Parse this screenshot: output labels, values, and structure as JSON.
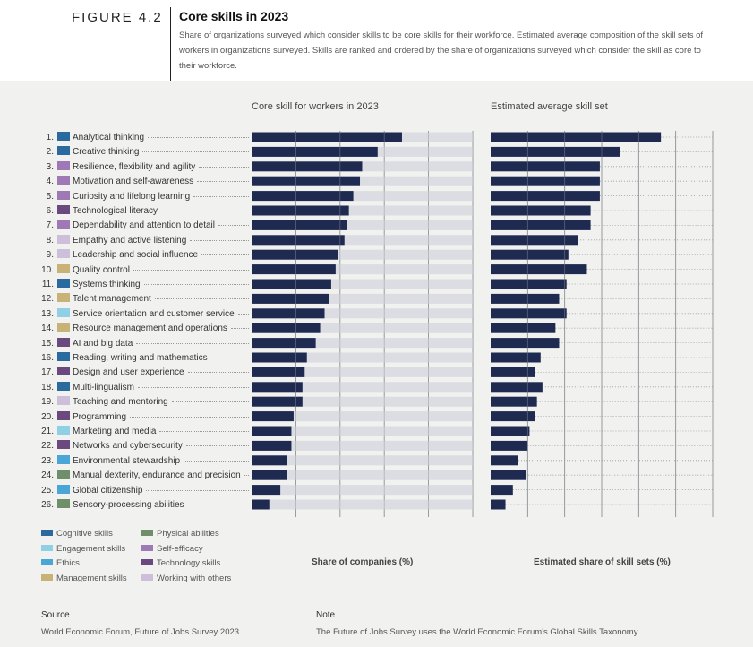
{
  "figure_label": "FIGURE 4.2",
  "title": "Core skills in 2023",
  "subtitle": "Share of organizations surveyed which consider skills to be core skills for their workforce. Estimated average composition of the skill sets of workers in organizations surveyed. Skills are ranked and ordered by the share of organizations surveyed which consider the skill as core to their workforce.",
  "colors": {
    "bar": "#1f2a50",
    "track": "#dcdde3",
    "Cognitive skills": "#2b6a9e",
    "Engagement skills": "#8fd0e6",
    "Ethics": "#4aa6d6",
    "Management skills": "#c8b277",
    "Physical abilities": "#6f8f6a",
    "Self-efficacy": "#9e79b5",
    "Technology skills": "#6a4a7e",
    "Working with others": "#cdbfd9"
  },
  "legend": [
    {
      "label": "Cognitive skills",
      "color": "#2b6a9e"
    },
    {
      "label": "Engagement skills",
      "color": "#8fd0e6"
    },
    {
      "label": "Ethics",
      "color": "#4aa6d6"
    },
    {
      "label": "Management skills",
      "color": "#c8b277"
    },
    {
      "label": "Physical abilities",
      "color": "#6f8f6a"
    },
    {
      "label": "Self-efficacy",
      "color": "#9e79b5"
    },
    {
      "label": "Technology skills",
      "color": "#6a4a7e"
    },
    {
      "label": "Working with others",
      "color": "#cdbfd9"
    }
  ],
  "chart_data": [
    {
      "type": "bar",
      "orientation": "horizontal",
      "title": "Core skill for workers in 2023",
      "xlabel": "Share of companies (%)",
      "xlim": [
        0,
        100
      ],
      "xticks": [
        0,
        20,
        40,
        60,
        80,
        100
      ],
      "categories": [
        "Analytical thinking",
        "Creative thinking",
        "Resilience, flexibility and agility",
        "Motivation and self-awareness",
        "Curiosity and lifelong learning",
        "Technological literacy",
        "Dependability and attention to detail",
        "Empathy and active listening",
        "Leadership and social influence",
        "Quality control",
        "Systems thinking",
        "Talent management",
        "Service orientation and customer service",
        "Resource management and operations",
        "AI and big data",
        "Reading, writing and mathematics",
        "Design and user experience",
        "Multi-lingualism",
        "Teaching and mentoring",
        "Programming",
        "Marketing and media",
        "Networks and cybersecurity",
        "Environmental stewardship",
        "Manual dexterity, endurance and precision",
        "Global citizenship",
        "Sensory-processing abilities"
      ],
      "values": [
        68,
        57,
        50,
        49,
        46,
        44,
        43,
        42,
        39,
        38,
        36,
        35,
        33,
        31,
        29,
        25,
        24,
        23,
        23,
        19,
        18,
        18,
        16,
        16,
        13,
        8
      ]
    },
    {
      "type": "bar",
      "orientation": "horizontal",
      "title": "Estimated average skill set",
      "xlabel": "Estimated share of skill sets (%)",
      "xlim": [
        0,
        12
      ],
      "xticks": [
        0,
        2,
        4,
        6,
        8,
        10,
        12
      ],
      "categories": [
        "Analytical thinking",
        "Creative thinking",
        "Resilience, flexibility and agility",
        "Motivation and self-awareness",
        "Curiosity and lifelong learning",
        "Technological literacy",
        "Dependability and attention to detail",
        "Empathy and active listening",
        "Leadership and social influence",
        "Quality control",
        "Systems thinking",
        "Talent management",
        "Service orientation and customer service",
        "Resource management and operations",
        "AI and big data",
        "Reading, writing and mathematics",
        "Design and user experience",
        "Multi-lingualism",
        "Teaching and mentoring",
        "Programming",
        "Marketing and media",
        "Networks and cybersecurity",
        "Environmental stewardship",
        "Manual dexterity, endurance and precision",
        "Global citizenship",
        "Sensory-processing abilities"
      ],
      "values": [
        9.2,
        7.0,
        5.9,
        5.9,
        5.9,
        5.4,
        5.4,
        4.7,
        4.2,
        5.2,
        4.1,
        3.7,
        4.1,
        3.5,
        3.7,
        2.7,
        2.4,
        2.8,
        2.5,
        2.4,
        2.1,
        2.0,
        1.5,
        1.9,
        1.2,
        0.8
      ]
    }
  ],
  "skills": [
    {
      "rank": "1.",
      "label": "Analytical thinking",
      "group": "Cognitive skills"
    },
    {
      "rank": "2.",
      "label": "Creative thinking",
      "group": "Cognitive skills"
    },
    {
      "rank": "3.",
      "label": "Resilience, flexibility and agility",
      "group": "Self-efficacy"
    },
    {
      "rank": "4.",
      "label": "Motivation and self-awareness",
      "group": "Self-efficacy"
    },
    {
      "rank": "5.",
      "label": "Curiosity and lifelong learning",
      "group": "Self-efficacy"
    },
    {
      "rank": "6.",
      "label": "Technological literacy",
      "group": "Technology skills"
    },
    {
      "rank": "7.",
      "label": "Dependability and attention to detail",
      "group": "Self-efficacy"
    },
    {
      "rank": "8.",
      "label": "Empathy and active listening",
      "group": "Working with others"
    },
    {
      "rank": "9.",
      "label": "Leadership and social influence",
      "group": "Working with others"
    },
    {
      "rank": "10.",
      "label": "Quality control",
      "group": "Management skills"
    },
    {
      "rank": "11.",
      "label": "Systems thinking",
      "group": "Cognitive skills"
    },
    {
      "rank": "12.",
      "label": "Talent management",
      "group": "Management skills"
    },
    {
      "rank": "13.",
      "label": "Service orientation and customer service",
      "group": "Engagement skills"
    },
    {
      "rank": "14.",
      "label": "Resource management and operations",
      "group": "Management skills"
    },
    {
      "rank": "15.",
      "label": "AI and big data",
      "group": "Technology skills"
    },
    {
      "rank": "16.",
      "label": "Reading, writing and mathematics",
      "group": "Cognitive skills"
    },
    {
      "rank": "17.",
      "label": "Design and user experience",
      "group": "Technology skills"
    },
    {
      "rank": "18.",
      "label": "Multi-lingualism",
      "group": "Cognitive skills"
    },
    {
      "rank": "19.",
      "label": "Teaching and mentoring",
      "group": "Working with others"
    },
    {
      "rank": "20.",
      "label": "Programming",
      "group": "Technology skills"
    },
    {
      "rank": "21.",
      "label": "Marketing and media",
      "group": "Engagement skills"
    },
    {
      "rank": "22.",
      "label": "Networks and cybersecurity",
      "group": "Technology skills"
    },
    {
      "rank": "23.",
      "label": "Environmental stewardship",
      "group": "Ethics"
    },
    {
      "rank": "24.",
      "label": "Manual dexterity, endurance and precision",
      "group": "Physical abilities"
    },
    {
      "rank": "25.",
      "label": "Global citizenship",
      "group": "Ethics"
    },
    {
      "rank": "26.",
      "label": "Sensory-processing abilities",
      "group": "Physical abilities"
    }
  ],
  "footer": {
    "source_heading": "Source",
    "source_text": "World Economic Forum, Future of Jobs Survey 2023.",
    "note_heading": "Note",
    "note_text": "The Future of Jobs Survey uses the World Economic Forum's Global Skills Taxonomy."
  }
}
